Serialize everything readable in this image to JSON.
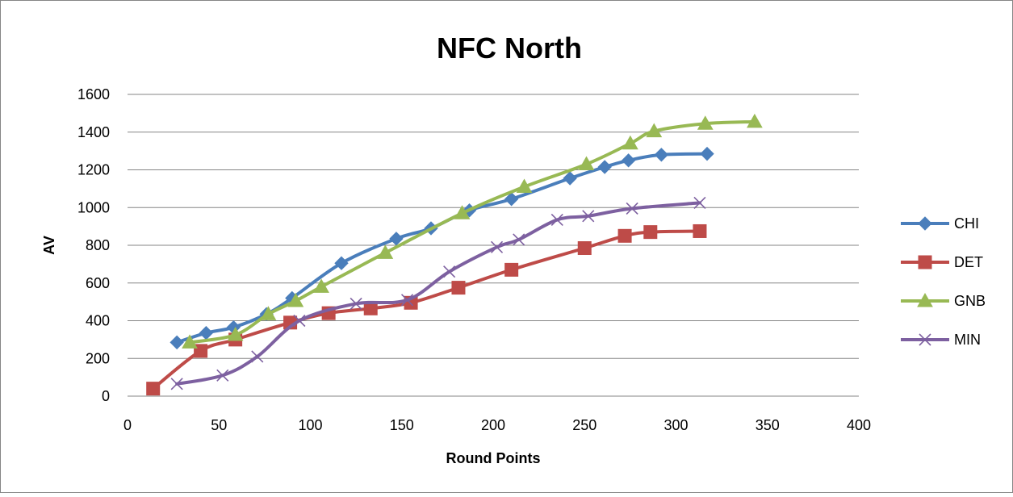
{
  "chart_data": {
    "type": "scatter",
    "title": "NFC North",
    "xlabel": "Round Points",
    "ylabel": "AV",
    "xlim": [
      0,
      400
    ],
    "ylim": [
      0,
      1600
    ],
    "xticks": [
      0,
      50,
      100,
      150,
      200,
      250,
      300,
      350,
      400
    ],
    "yticks": [
      0,
      200,
      400,
      600,
      800,
      1000,
      1200,
      1400,
      1600
    ],
    "grid": "horizontal",
    "legend_position": "right",
    "series": [
      {
        "name": "CHI",
        "color": "#4a7ebb",
        "marker": "diamond",
        "points": [
          [
            27,
            285
          ],
          [
            43,
            335
          ],
          [
            58,
            365
          ],
          [
            76,
            435
          ],
          [
            90,
            520
          ],
          [
            117,
            705
          ],
          [
            147,
            835
          ],
          [
            166,
            890
          ],
          [
            187,
            985
          ],
          [
            210,
            1045
          ],
          [
            242,
            1155
          ],
          [
            261,
            1215
          ],
          [
            274,
            1250
          ],
          [
            292,
            1280
          ],
          [
            317,
            1285
          ]
        ]
      },
      {
        "name": "DET",
        "color": "#be4b48",
        "marker": "square",
        "points": [
          [
            14,
            40
          ],
          [
            40,
            240
          ],
          [
            59,
            300
          ],
          [
            89,
            390
          ],
          [
            110,
            440
          ],
          [
            133,
            465
          ],
          [
            155,
            495
          ],
          [
            181,
            575
          ],
          [
            210,
            670
          ],
          [
            250,
            785
          ],
          [
            272,
            850
          ],
          [
            286,
            870
          ],
          [
            313,
            875
          ]
        ]
      },
      {
        "name": "GNB",
        "color": "#98b954",
        "marker": "triangle",
        "points": [
          [
            34,
            285
          ],
          [
            59,
            325
          ],
          [
            77,
            435
          ],
          [
            92,
            505
          ],
          [
            106,
            580
          ],
          [
            141,
            760
          ],
          [
            183,
            970
          ],
          [
            217,
            1110
          ],
          [
            251,
            1230
          ],
          [
            275,
            1340
          ],
          [
            288,
            1405
          ],
          [
            316,
            1445
          ],
          [
            343,
            1455
          ]
        ]
      },
      {
        "name": "MIN",
        "color": "#7d60a0",
        "marker": "x",
        "points": [
          [
            27,
            65
          ],
          [
            52,
            110
          ],
          [
            71,
            210
          ],
          [
            94,
            400
          ],
          [
            125,
            490
          ],
          [
            153,
            510
          ],
          [
            176,
            660
          ],
          [
            202,
            790
          ],
          [
            214,
            830
          ],
          [
            235,
            935
          ],
          [
            252,
            955
          ],
          [
            276,
            995
          ],
          [
            313,
            1025
          ]
        ]
      }
    ]
  }
}
